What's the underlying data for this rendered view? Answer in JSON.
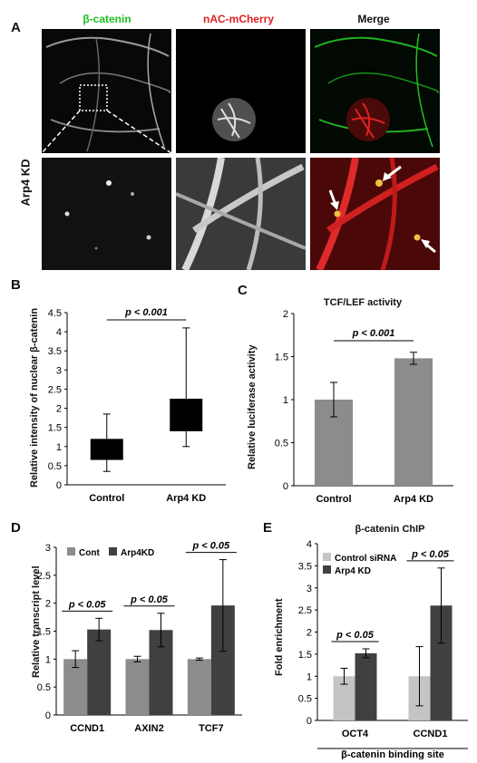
{
  "panels": {
    "a": "A",
    "b": "B",
    "c": "C",
    "d": "D",
    "e": "E"
  },
  "panelA": {
    "col1": "β-catenin",
    "col2": "nAC-mCherry",
    "col3": "Merge",
    "row_label": "Arp4 KD",
    "colors": {
      "green": "#20c020",
      "red": "#e02020"
    }
  },
  "chart_data": [
    {
      "id": "B",
      "type": "bar",
      "subtype": "box",
      "categories": [
        "Control",
        "Arp4 KD"
      ],
      "boxes": [
        {
          "min": 0.35,
          "q1": 0.65,
          "q3": 1.2,
          "max": 1.85
        },
        {
          "min": 1.0,
          "q1": 1.4,
          "q3": 2.25,
          "max": 4.1
        }
      ],
      "ylabel": "Relative intensity of nuclear β-catenin",
      "ylim": [
        0,
        4.5
      ],
      "yticks": [
        "0",
        "0.5",
        "1",
        "1.5",
        "2",
        "2.5",
        "3",
        "3.5",
        "4",
        "4.5"
      ],
      "annotation": "p < 0.001",
      "color": "#000000"
    },
    {
      "id": "C",
      "type": "bar",
      "title": "TCF/LEF activity",
      "categories": [
        "Control",
        "Arp4 KD"
      ],
      "values": [
        1.0,
        1.48
      ],
      "errors": [
        0.2,
        0.07
      ],
      "ylabel": "Relative luciferase activity",
      "ylim": [
        0,
        2
      ],
      "yticks": [
        "0",
        "0.5",
        "1",
        "1.5",
        "2"
      ],
      "annotation": "p < 0.001",
      "color": "#8c8c8c"
    },
    {
      "id": "D",
      "type": "bar",
      "categories": [
        "CCND1",
        "AXIN2",
        "TCF7"
      ],
      "series": [
        {
          "name": "Cont",
          "values": [
            1.0,
            1.0,
            1.0
          ],
          "errors": [
            0.15,
            0.05,
            0.02
          ],
          "color": "#8c8c8c"
        },
        {
          "name": "Arp4KD",
          "values": [
            1.53,
            1.52,
            1.96
          ],
          "errors": [
            0.2,
            0.3,
            0.82
          ],
          "color": "#404040"
        }
      ],
      "ylabel": "Relative transcript level",
      "ylim": [
        0,
        3
      ],
      "yticks": [
        "0",
        "0.5",
        "1",
        "1.5",
        "2",
        "2.5",
        "3"
      ],
      "annotations": [
        "p < 0.05",
        "p < 0.05",
        "p < 0.05"
      ],
      "legend": "top-left"
    },
    {
      "id": "E",
      "type": "bar",
      "title": "β-catenin ChIP",
      "categories": [
        "OCT4",
        "CCND1"
      ],
      "series": [
        {
          "name": "Control siRNA",
          "values": [
            1.0,
            1.0
          ],
          "errors": [
            0.18,
            0.67
          ],
          "color": "#c4c4c4"
        },
        {
          "name": "Arp4 KD",
          "values": [
            1.52,
            2.6
          ],
          "errors": [
            0.1,
            0.85
          ],
          "color": "#404040"
        }
      ],
      "ylabel": "Fold enrichment",
      "xlabel": "β-catenin binding site",
      "ylim": [
        0,
        4
      ],
      "yticks": [
        "0",
        "0.5",
        "1",
        "1.5",
        "2",
        "2.5",
        "3",
        "3.5",
        "4"
      ],
      "annotations": [
        "p < 0.05",
        "p < 0.05"
      ],
      "legend": "top-left"
    }
  ]
}
